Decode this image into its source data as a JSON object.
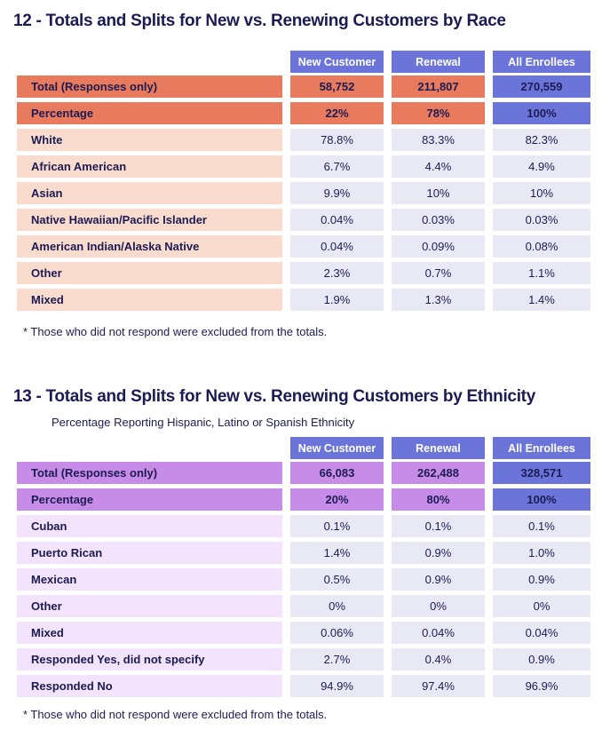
{
  "tables": [
    {
      "id": "race",
      "title": "12 - Totals and Splits for New vs. Renewing Customers by Race",
      "column_headers": [
        "New Customer",
        "Renewal",
        "All Enrollees"
      ],
      "summary_rows": [
        {
          "label": "Total (Responses only)",
          "values": [
            "58,752",
            "211,807",
            "270,559"
          ]
        },
        {
          "label": "Percentage",
          "values": [
            "22%",
            "78%",
            "100%"
          ]
        }
      ],
      "data_rows": [
        {
          "label": "White",
          "values": [
            "78.8%",
            "83.3%",
            "82.3%"
          ]
        },
        {
          "label": "African American",
          "values": [
            "6.7%",
            "4.4%",
            "4.9%"
          ]
        },
        {
          "label": "Asian",
          "values": [
            "9.9%",
            "10%",
            "10%"
          ]
        },
        {
          "label": "Native Hawaiian/Pacific Islander",
          "values": [
            "0.04%",
            "0.03%",
            "0.03%"
          ]
        },
        {
          "label": "American Indian/Alaska Native",
          "values": [
            "0.04%",
            "0.09%",
            "0.08%"
          ]
        },
        {
          "label": "Other",
          "values": [
            "2.3%",
            "0.7%",
            "1.1%"
          ]
        },
        {
          "label": "Mixed",
          "values": [
            "1.9%",
            "1.3%",
            "1.4%"
          ]
        }
      ],
      "footnote": "* Those who did not respond were excluded from the totals.",
      "theme": {
        "summary_bg": "#e87a5e",
        "label_bg": "#fadcce",
        "value_bg": "#e9e9f6",
        "header_bg": "#6b74d9",
        "highlight_bg": "#6b74d9",
        "header_text": "#ffffff"
      }
    },
    {
      "id": "ethnicity",
      "title": "13 - Totals and Splits for New vs. Renewing Customers by Ethnicity",
      "subtitle": "Percentage Reporting Hispanic, Latino or Spanish Ethnicity",
      "column_headers": [
        "New Customer",
        "Renewal",
        "All Enrollees"
      ],
      "summary_rows": [
        {
          "label": "Total (Responses only)",
          "values": [
            "66,083",
            "262,488",
            "328,571"
          ]
        },
        {
          "label": "Percentage",
          "values": [
            "20%",
            "80%",
            "100%"
          ]
        }
      ],
      "data_rows": [
        {
          "label": "Cuban",
          "values": [
            "0.1%",
            "0.1%",
            "0.1%"
          ]
        },
        {
          "label": "Puerto Rican",
          "values": [
            "1.4%",
            "0.9%",
            "1.0%"
          ]
        },
        {
          "label": "Mexican",
          "values": [
            "0.5%",
            "0.9%",
            "0.9%"
          ]
        },
        {
          "label": "Other",
          "values": [
            "0%",
            "0%",
            "0%"
          ]
        },
        {
          "label": "Mixed",
          "values": [
            "0.06%",
            "0.04%",
            "0.04%"
          ]
        },
        {
          "label": "Responded Yes, did not specify",
          "values": [
            "2.7%",
            "0.4%",
            "0.9%"
          ]
        },
        {
          "label": "Responded No",
          "values": [
            "94.9%",
            "97.4%",
            "96.9%"
          ]
        }
      ],
      "footnote": "* Those who did not respond were excluded from the totals.",
      "theme": {
        "summary_bg": "#c78ce8",
        "label_bg": "#f3e3fc",
        "value_bg": "#e9e9f6",
        "header_bg": "#6b74d9",
        "highlight_bg": "#6b74d9",
        "header_text": "#ffffff"
      }
    }
  ]
}
